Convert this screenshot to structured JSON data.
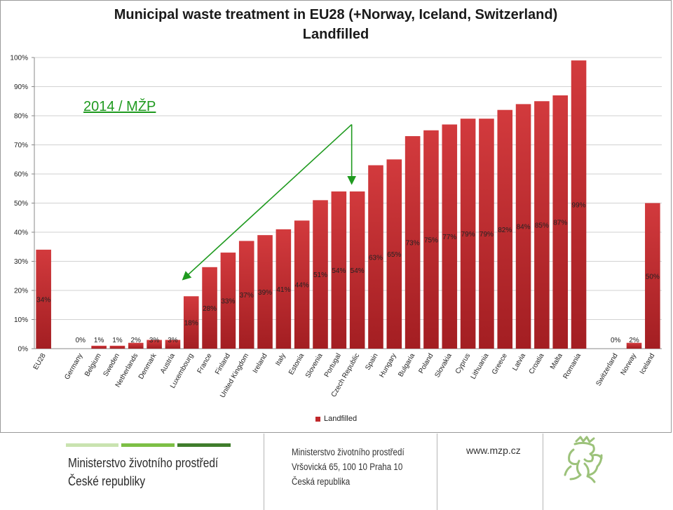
{
  "chart_data": {
    "type": "bar",
    "title": "Municipal waste treatment in EU28 (+Norway, Iceland, Switzerland)",
    "subtitle": "Landfilled",
    "categories": [
      "EU28",
      "",
      "Germany",
      "Belgium",
      "Sweden",
      "Netherlands",
      "Denmark",
      "Austria",
      "Luxembourg",
      "France",
      "Finland",
      "United Kingdom",
      "Ireland",
      "Italy",
      "Estonia",
      "Slovenia",
      "Portugal",
      "Czech Republic",
      "Spain",
      "Hungary",
      "Bulgaria",
      "Poland",
      "Slovakia",
      "Cyprus",
      "Lithuania",
      "Greece",
      "Latvia",
      "Croatia",
      "Malta",
      "Romania",
      "",
      "Switzerland",
      "Norway",
      "Iceland"
    ],
    "series": [
      {
        "name": "Landfilled",
        "values": [
          34,
          null,
          0,
          1,
          1,
          2,
          3,
          3,
          18,
          28,
          33,
          37,
          39,
          41,
          44,
          51,
          54,
          54,
          63,
          65,
          73,
          75,
          77,
          79,
          79,
          82,
          84,
          85,
          87,
          99,
          null,
          0,
          2,
          50
        ],
        "labels": [
          "34%",
          "",
          "0%",
          "1%",
          "1%",
          "2%",
          "3%",
          "3%",
          "18%",
          "28%",
          "33%",
          "37%",
          "39%",
          "41%",
          "44%",
          "51%",
          "54%",
          "54%",
          "63%",
          "65%",
          "73%",
          "75%",
          "77%",
          "79%",
          "79%",
          "82%",
          "84%",
          "85%",
          "87%",
          "99%",
          "",
          "0%",
          "2%",
          "50%"
        ]
      }
    ],
    "ylim": [
      0,
      100
    ],
    "yticks": [
      "0%",
      "10%",
      "20%",
      "30%",
      "40%",
      "50%",
      "60%",
      "70%",
      "80%",
      "90%",
      "100%"
    ],
    "grid": true,
    "legend": "bottom",
    "bar_color": "#c0282b",
    "annotation": "2014 / MŽP",
    "annotation_color": "#1f9a1f"
  },
  "footer": {
    "ministry_line1": "Ministerstvo životního prostředí",
    "ministry_line2": "České republiky",
    "address_line1": "Ministerstvo životního prostředí",
    "address_line2": "Vršovická 65, 100 10  Praha 10",
    "address_line3": "Česká republika",
    "website": "www.mzp.cz",
    "stripe_colors": [
      "#c9e3b0",
      "#7dbf45",
      "#3f7d2b"
    ]
  }
}
